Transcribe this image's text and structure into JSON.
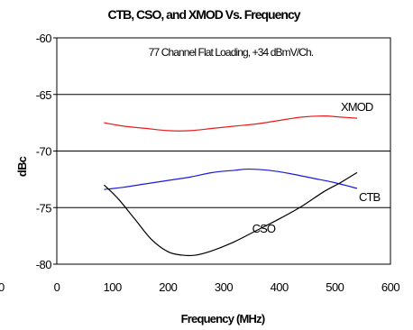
{
  "chart_data": {
    "type": "line",
    "title": "CTB, CSO, and XMOD Vs. Frequency",
    "annotation": "77 Channel Flat Loading, +34 dBmV/Ch.",
    "xlabel": "Frequency (MHz)",
    "ylabel": "dBc",
    "xlim": [
      0,
      600
    ],
    "ylim": [
      -80,
      -60
    ],
    "x_ticks": [
      "0",
      "100",
      "200",
      "300",
      "400",
      "500",
      "600"
    ],
    "y_ticks": [
      "-60",
      "-65",
      "-70",
      "-75",
      "-80"
    ],
    "clipped_tick_label": "0",
    "grid": "horizontal",
    "series": [
      {
        "name": "XMOD",
        "color": "#e81c1c",
        "x": [
          85,
          120,
          160,
          200,
          240,
          280,
          320,
          360,
          400,
          440,
          480,
          510,
          540
        ],
        "y": [
          -67.5,
          -67.8,
          -68.0,
          -68.2,
          -68.2,
          -68.0,
          -67.8,
          -67.6,
          -67.3,
          -67.0,
          -66.9,
          -67.0,
          -67.1
        ]
      },
      {
        "name": "CTB",
        "color": "#1a1adc",
        "x": [
          85,
          120,
          160,
          200,
          240,
          280,
          320,
          345,
          380,
          420,
          460,
          500,
          540
        ],
        "y": [
          -73.4,
          -73.2,
          -72.9,
          -72.6,
          -72.3,
          -71.9,
          -71.7,
          -71.6,
          -71.7,
          -72.0,
          -72.4,
          -72.8,
          -73.3
        ]
      },
      {
        "name": "CSO",
        "color": "#000000",
        "x": [
          85,
          110,
          140,
          170,
          200,
          225,
          250,
          280,
          320,
          360,
          400,
          440,
          480,
          510,
          540
        ],
        "y": [
          -73.0,
          -74.2,
          -76.0,
          -77.8,
          -78.9,
          -79.2,
          -79.2,
          -78.8,
          -78.0,
          -77.0,
          -76.0,
          -74.9,
          -73.6,
          -72.8,
          -71.9
        ]
      }
    ],
    "series_label_positions": [
      "inline-right",
      "inline-right",
      "inline-below"
    ]
  }
}
